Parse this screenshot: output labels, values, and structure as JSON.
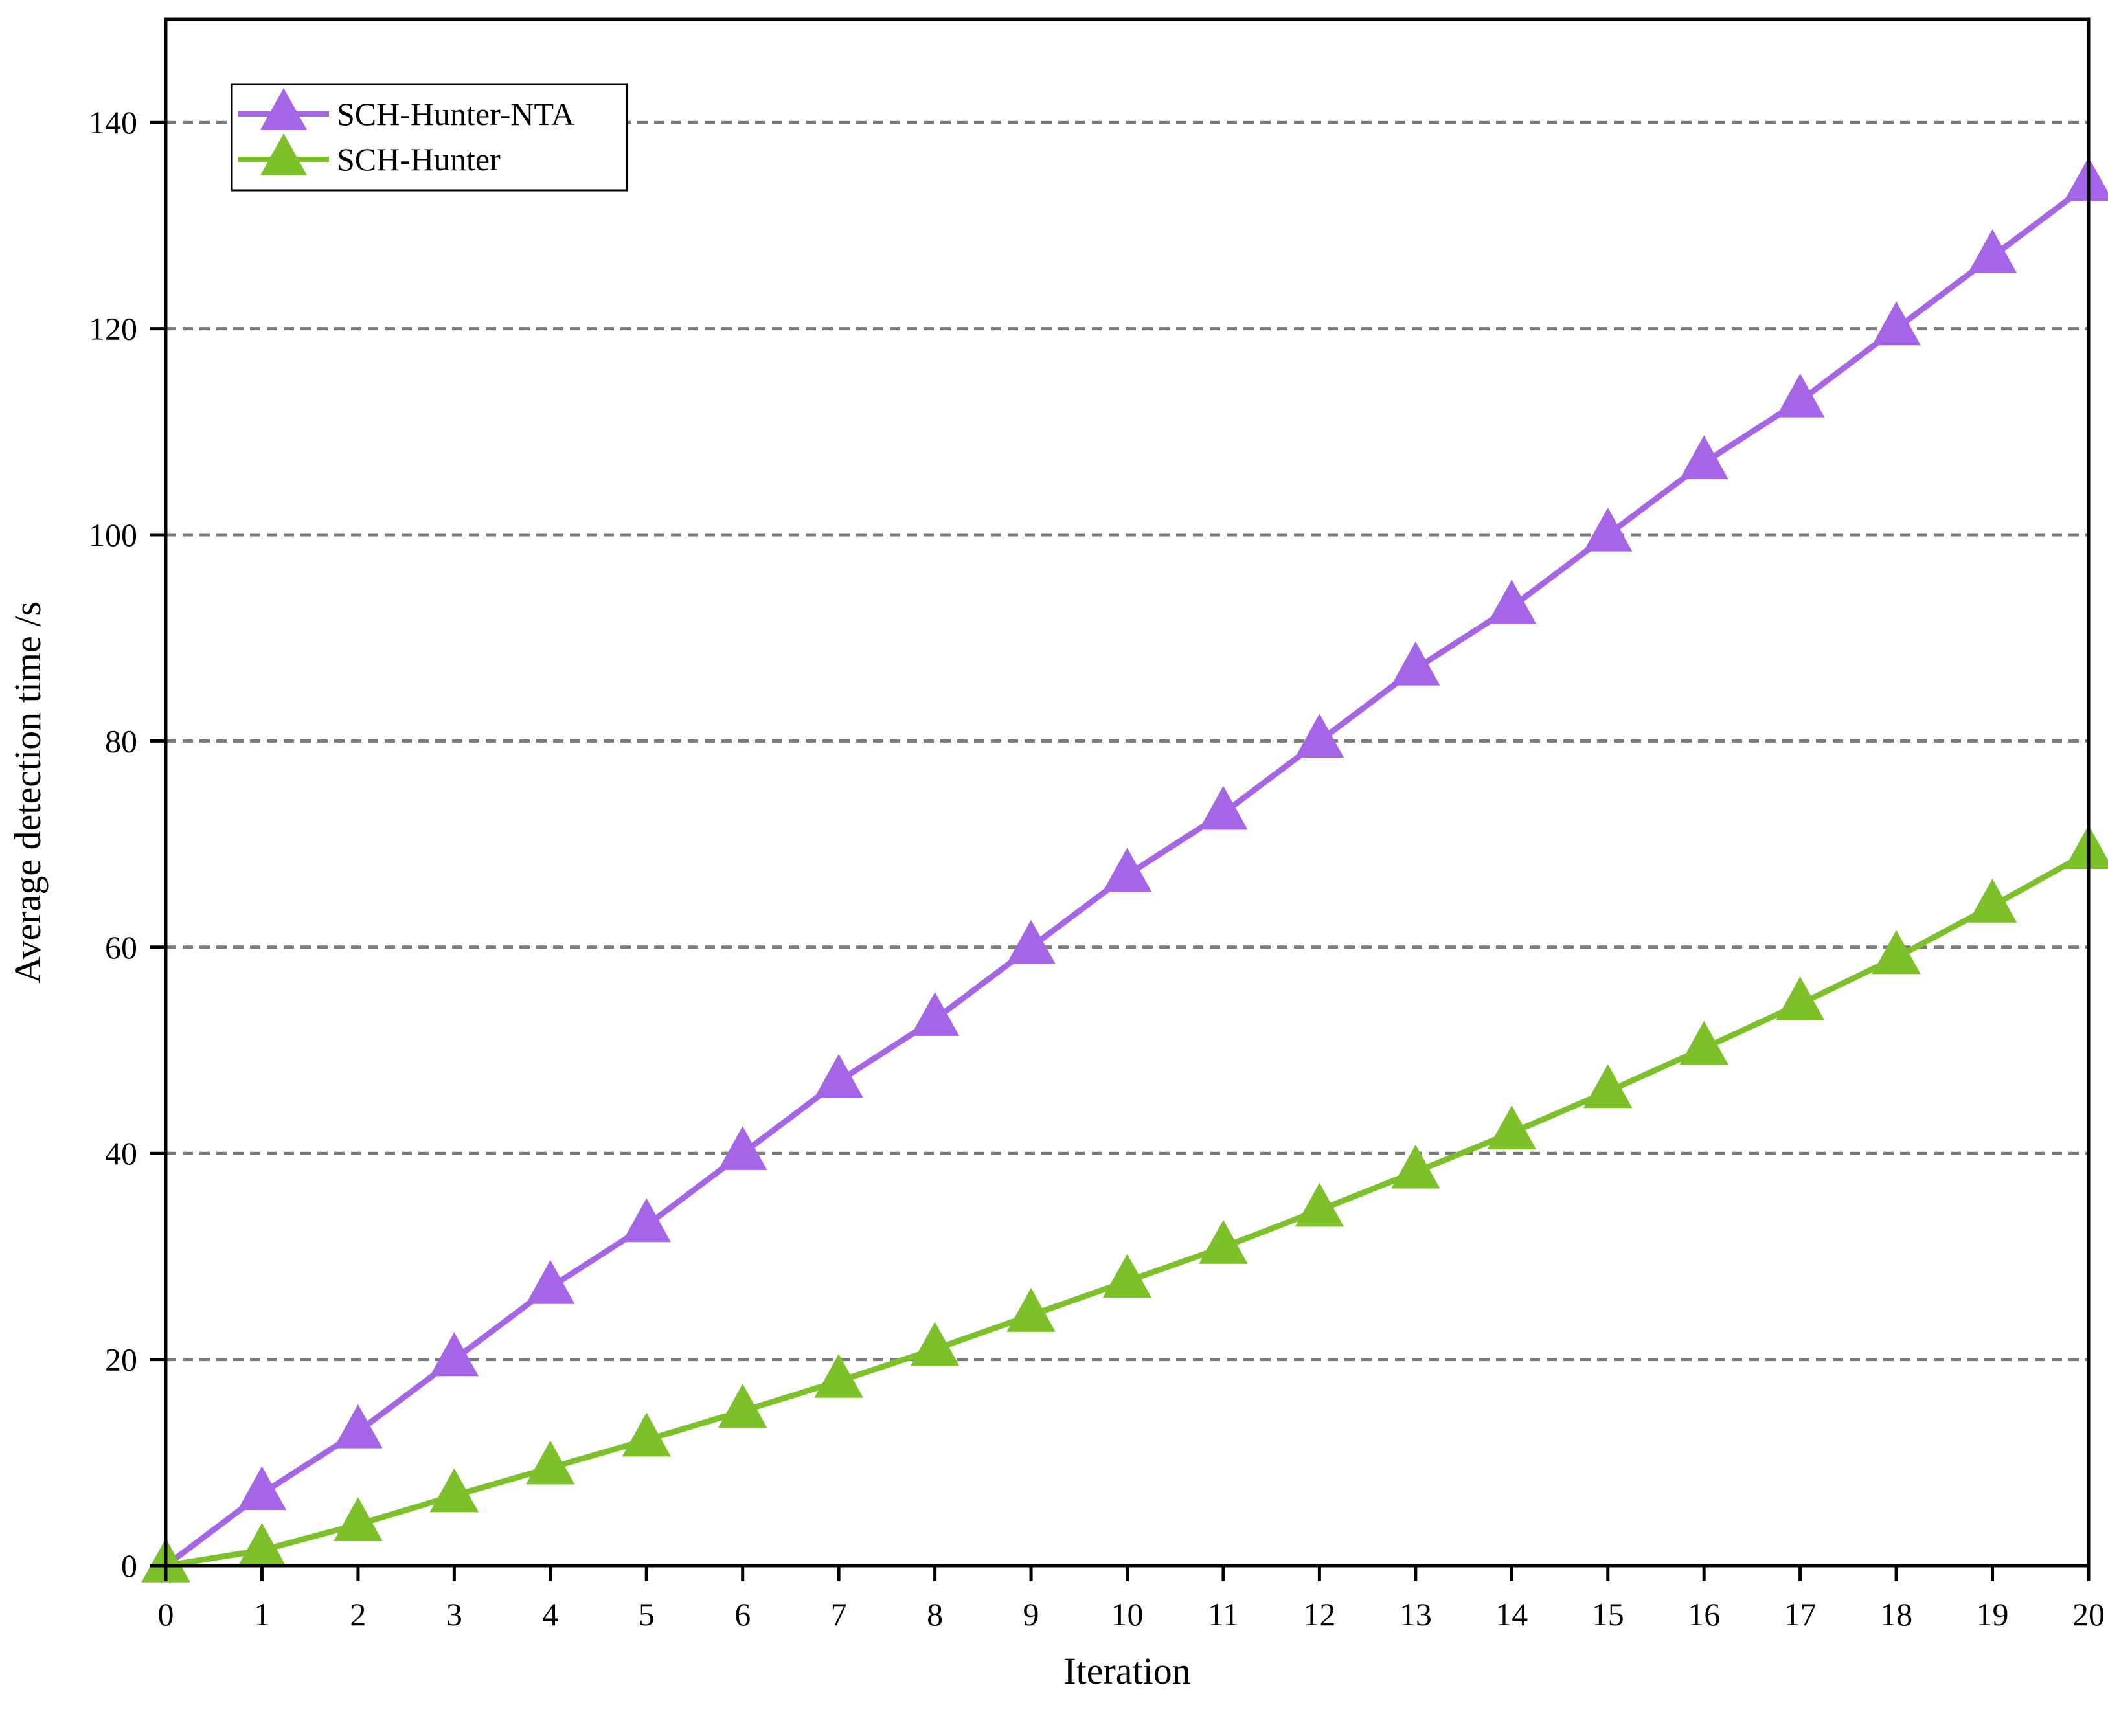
{
  "chart_data": {
    "type": "line",
    "title": "",
    "xlabel": "Iteration",
    "ylabel": "Average detection time /s",
    "xlim": [
      0,
      20
    ],
    "ylim": [
      0,
      150
    ],
    "x_ticks": [
      0,
      1,
      2,
      3,
      4,
      5,
      6,
      7,
      8,
      9,
      10,
      11,
      12,
      13,
      14,
      15,
      16,
      17,
      18,
      19,
      20
    ],
    "y_ticks": [
      0,
      20,
      40,
      60,
      80,
      100,
      120,
      140
    ],
    "grid": {
      "horizontal": true,
      "style": "dashed"
    },
    "legend_position": "top-left",
    "marker": "triangle",
    "x": [
      0,
      1,
      2,
      3,
      4,
      5,
      6,
      7,
      8,
      9,
      10,
      11,
      12,
      13,
      14,
      15,
      16,
      17,
      18,
      19,
      20
    ],
    "series": [
      {
        "name": "SCH-Hunter-NTA",
        "color": "#A565E6",
        "values": [
          0,
          7,
          13,
          20,
          27,
          33,
          40,
          47,
          53,
          60,
          67,
          73,
          80,
          87,
          93,
          100,
          107,
          113,
          120,
          127,
          134
        ]
      },
      {
        "name": "SCH-Hunter",
        "color": "#7DC12A",
        "values": [
          0,
          1.5,
          4,
          6.8,
          9.5,
          12.2,
          15,
          17.9,
          21,
          24.3,
          27.6,
          30.9,
          34.5,
          38.2,
          42,
          46,
          50.2,
          54.5,
          59,
          64,
          69.2
        ]
      }
    ]
  }
}
